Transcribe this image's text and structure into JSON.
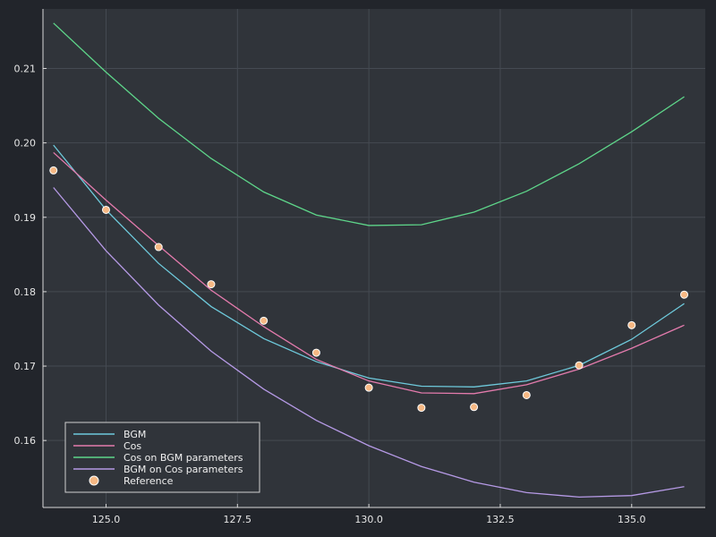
{
  "chart_data": {
    "type": "line",
    "title": "",
    "xlabel": "",
    "ylabel": "",
    "xlim": [
      123.8,
      136.4
    ],
    "ylim": [
      0.151,
      0.218
    ],
    "grid": true,
    "legend_position": "bottom-left",
    "x_ticks": [
      125.0,
      127.5,
      130.0,
      132.5,
      135.0
    ],
    "x_tick_labels": [
      "125.0",
      "127.5",
      "130.0",
      "132.5",
      "135.0"
    ],
    "y_ticks": [
      0.16,
      0.17,
      0.18,
      0.19,
      0.2,
      0.21
    ],
    "y_tick_labels": [
      "0.16",
      "0.17",
      "0.18",
      "0.19",
      "0.20",
      "0.21"
    ],
    "x": [
      124,
      125,
      126,
      127,
      128,
      129,
      130,
      131,
      132,
      133,
      134,
      135,
      136
    ],
    "series": [
      {
        "name": "BGM",
        "kind": "line",
        "color": "#6ecadc",
        "values": [
          0.1997,
          0.191,
          0.1838,
          0.178,
          0.1737,
          0.1706,
          0.1684,
          0.1673,
          0.1672,
          0.168,
          0.1701,
          0.1736,
          0.1784
        ]
      },
      {
        "name": "Cos",
        "kind": "line",
        "color": "#e47bad",
        "values": [
          0.1987,
          0.1923,
          0.1862,
          0.1802,
          0.1753,
          0.1709,
          0.168,
          0.1664,
          0.1663,
          0.1675,
          0.1696,
          0.1724,
          0.1755
        ]
      },
      {
        "name": "Cos on BGM parameters",
        "kind": "line",
        "color": "#5ed68a",
        "values": [
          0.2161,
          0.2095,
          0.2033,
          0.1979,
          0.1934,
          0.1903,
          0.1889,
          0.189,
          0.1907,
          0.1935,
          0.1972,
          0.2015,
          0.2062
        ]
      },
      {
        "name": "BGM on Cos parameters",
        "kind": "line",
        "color": "#b69ae6",
        "values": [
          0.194,
          0.1855,
          0.1782,
          0.172,
          0.1669,
          0.1627,
          0.1593,
          0.1565,
          0.1544,
          0.153,
          0.1524,
          0.1526,
          0.1538
        ]
      },
      {
        "name": "Reference",
        "kind": "scatter",
        "color": "#f6b884",
        "values": [
          0.1963,
          0.191,
          0.186,
          0.181,
          0.1761,
          0.1718,
          0.1671,
          0.1644,
          0.1645,
          0.1661,
          0.1701,
          0.1755,
          0.1796
        ]
      }
    ]
  }
}
